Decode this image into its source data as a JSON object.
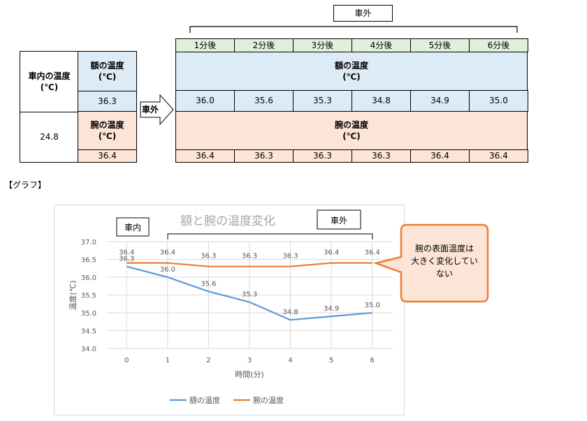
{
  "labels": {
    "inside_title": "車内の温度\n(℃)",
    "inside_value": "24.8",
    "forehead_temp": "額の温度\n(℃)",
    "arm_temp": "腕の温度\n(℃)",
    "arrow_label": "車外",
    "outside_header": "車外",
    "graph_label": "【グラフ】"
  },
  "table": {
    "minutes": [
      "1分後",
      "2分後",
      "3分後",
      "4分後",
      "5分後",
      "6分後"
    ],
    "forehead_inside": "36.3",
    "arm_inside": "36.4",
    "forehead_outside": [
      "36.0",
      "35.6",
      "35.3",
      "34.8",
      "34.9",
      "35.0"
    ],
    "arm_outside": [
      "36.4",
      "36.3",
      "36.3",
      "36.3",
      "36.4",
      "36.4"
    ]
  },
  "colors": {
    "header_green": "#e2efda",
    "forehead_blue": "#ddebf7",
    "arm_pink": "#fce4d6",
    "forehead_series": "#5b9bd5",
    "arm_series": "#ed7d31",
    "callout_fill": "#fce4d6",
    "callout_border": "#ed7d31"
  },
  "chart_data": {
    "type": "line",
    "title": "額と腕の温度変化",
    "xlabel": "時間(分)",
    "ylabel": "温度(℃)",
    "x": [
      0,
      1,
      2,
      3,
      4,
      5,
      6
    ],
    "ylim": [
      34.0,
      37.0
    ],
    "yticks": [
      "37.0",
      "36.5",
      "36.0",
      "35.5",
      "35.0",
      "34.5",
      "34.0"
    ],
    "xticks": [
      "0",
      "1",
      "2",
      "3",
      "4",
      "5",
      "6"
    ],
    "series": [
      {
        "name": "額の温度",
        "values": [
          36.3,
          36.0,
          35.6,
          35.3,
          34.8,
          34.9,
          35.0
        ],
        "labels": [
          "36.3",
          "36.0",
          "35.6",
          "35.3",
          "34.8",
          "34.9",
          "35.0"
        ]
      },
      {
        "name": "腕の温度",
        "values": [
          36.4,
          36.4,
          36.3,
          36.3,
          36.3,
          36.4,
          36.4
        ],
        "labels": [
          "36.4",
          "36.4",
          "36.3",
          "36.3",
          "36.3",
          "36.4",
          "36.4"
        ]
      }
    ],
    "grid": true,
    "legend": "bottom",
    "annotations": {
      "inside": "車内",
      "outside": "車外",
      "callout": "腕の表面温度は\n大きく変化してい\nない"
    }
  }
}
